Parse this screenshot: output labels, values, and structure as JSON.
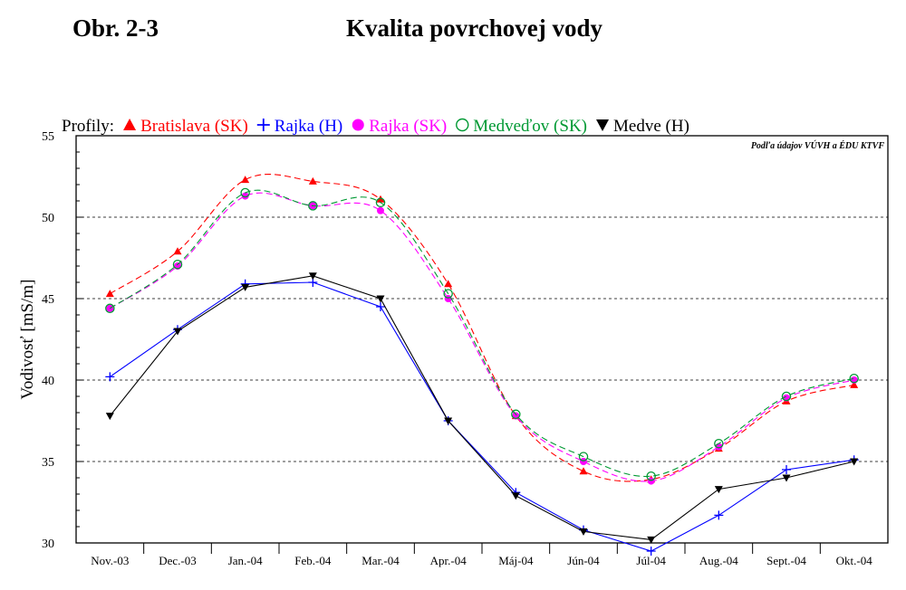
{
  "header": {
    "figure_number": "Obr. 2-3",
    "title": "Kvalita povrchovej vody"
  },
  "chart_data": {
    "type": "line",
    "title": "Kvalita povrchovej vody",
    "ylabel": "Vodivosť [mS/m]",
    "xlabel": "",
    "ylim": [
      30,
      55
    ],
    "yticks": [
      30,
      35,
      40,
      45,
      50,
      55
    ],
    "grid": "horizontal dashed at 35, 40, 45, 50",
    "legend_placement": "top",
    "legend_title": "Profily:",
    "source_note": "Podľa údajov VÚVH a ÉDU KTVF",
    "categories": [
      "Nov.-03",
      "Dec.-03",
      "Jan.-04",
      "Feb.-04",
      "Mar.-04",
      "Apr.-04",
      "Máj-04",
      "Jún-04",
      "Júl-04",
      "Aug.-04",
      "Sept.-04",
      "Okt.-04"
    ],
    "series": [
      {
        "name": "Bratislava (SK)",
        "color": "#ff0000",
        "marker": "triangle-up",
        "line": "dashed",
        "values": [
          45.3,
          47.9,
          52.3,
          52.2,
          51.1,
          45.9,
          37.8,
          34.4,
          33.9,
          35.8,
          38.7,
          39.7
        ]
      },
      {
        "name": "Rajka (H)",
        "color": "#0000ff",
        "marker": "plus",
        "line": "solid",
        "values": [
          40.2,
          43.1,
          45.9,
          46.0,
          44.5,
          37.5,
          33.1,
          30.8,
          29.5,
          31.7,
          34.5,
          35.1
        ]
      },
      {
        "name": "Rajka (SK)",
        "color": "#ff00ff",
        "marker": "filled-circle",
        "line": "dashed",
        "values": [
          44.4,
          47.0,
          51.3,
          50.7,
          50.4,
          45.0,
          37.8,
          35.0,
          33.8,
          35.9,
          38.9,
          40.0
        ]
      },
      {
        "name": "Medveďov (SK)",
        "color": "#009933",
        "marker": "open-circle",
        "line": "dashed",
        "values": [
          44.4,
          47.1,
          51.5,
          50.7,
          50.9,
          45.3,
          37.9,
          35.3,
          34.1,
          36.1,
          39.0,
          40.1
        ]
      },
      {
        "name": "Medve (H)",
        "color": "#000000",
        "marker": "triangle-down",
        "line": "solid",
        "values": [
          37.8,
          43.0,
          45.7,
          46.4,
          45.0,
          37.5,
          32.9,
          30.7,
          30.2,
          33.3,
          34.0,
          35.0
        ]
      }
    ]
  }
}
